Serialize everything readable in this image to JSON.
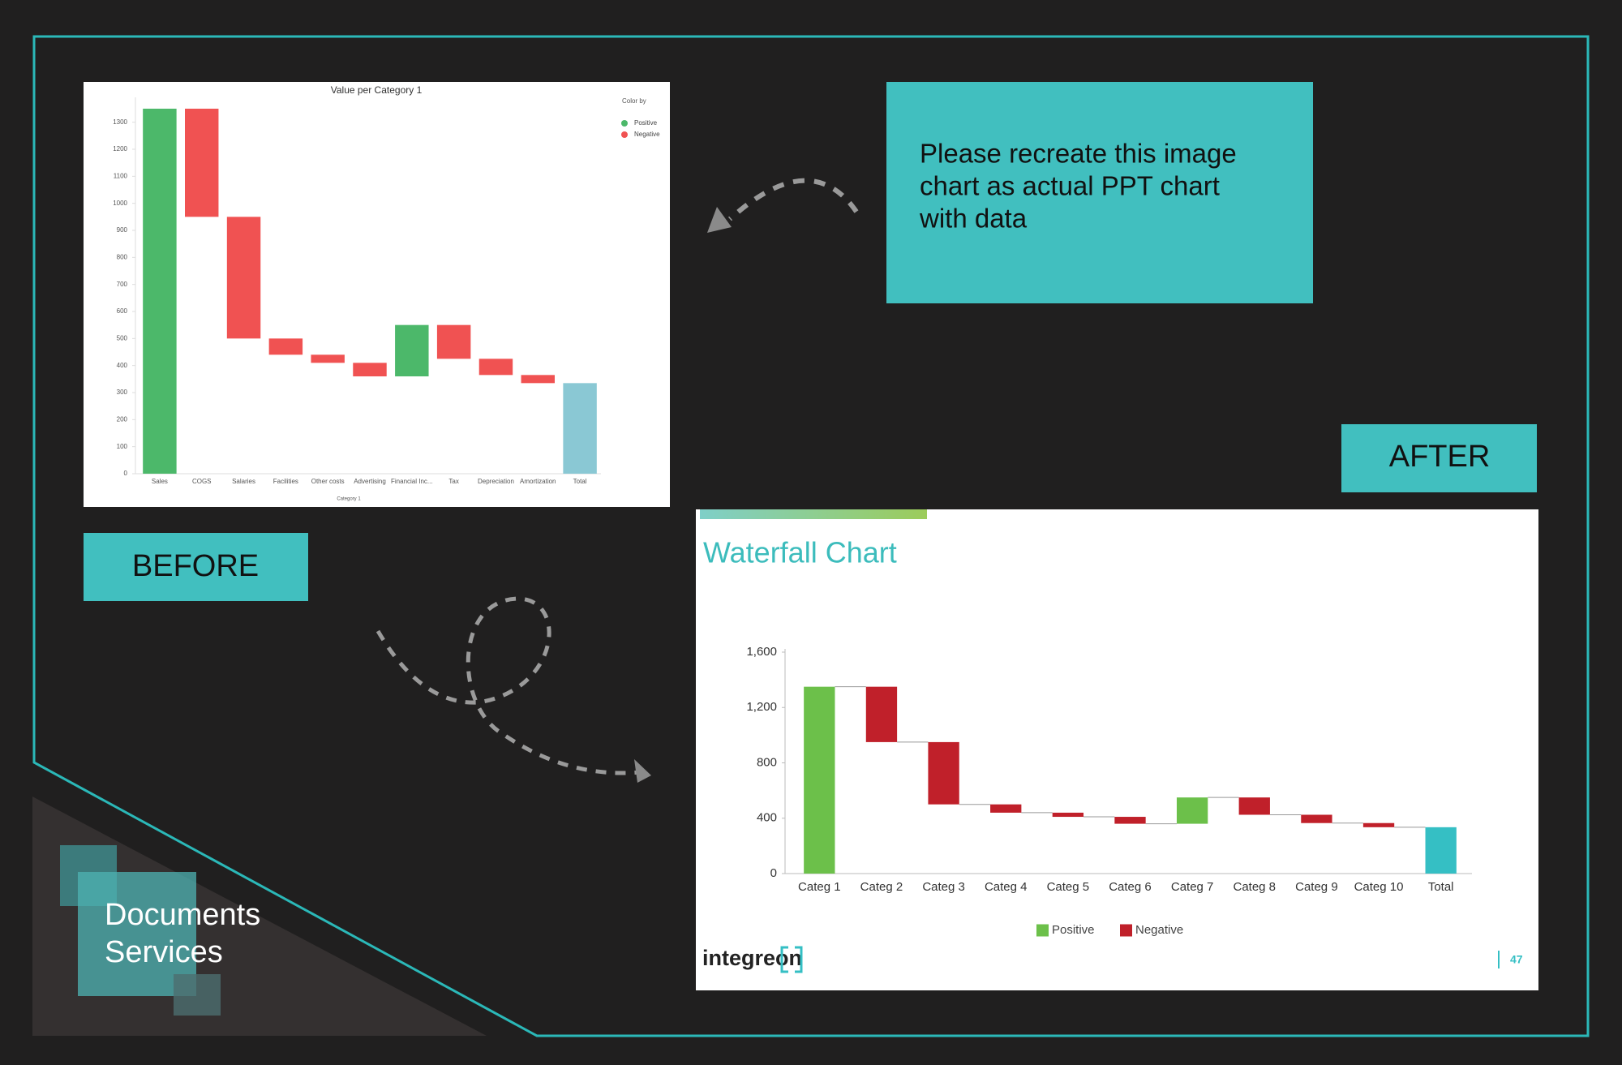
{
  "chart_data": [
    {
      "type": "waterfall",
      "title": "Value per Category 1",
      "legend_title": "Color by",
      "x_label": "Category 1",
      "categories": [
        "Sales",
        "COGS",
        "Salaries",
        "Facilities",
        "Other costs",
        "Advertising",
        "Financial Inc...",
        "Tax",
        "Depreciation",
        "Amortization",
        "Total"
      ],
      "values": [
        1350,
        -400,
        -450,
        -60,
        -30,
        -50,
        190,
        -125,
        -60,
        -30,
        335
      ],
      "legend": [
        "Positive",
        "Negative"
      ],
      "positive_color": "#4cb86a",
      "negative_color": "#f05252",
      "total_color": "#8ac8d4",
      "ylim": [
        0,
        1380
      ],
      "yticks": [
        0,
        100,
        200,
        300,
        400,
        500,
        600,
        700,
        800,
        900,
        1000,
        1100,
        1200,
        1300
      ],
      "grid": false
    },
    {
      "type": "waterfall",
      "title": "Waterfall Chart",
      "categories": [
        "Categ 1",
        "Categ 2",
        "Categ 3",
        "Categ 4",
        "Categ 5",
        "Categ 6",
        "Categ 7",
        "Categ 8",
        "Categ 9",
        "Categ 10",
        "Total"
      ],
      "values": [
        1350,
        -400,
        -450,
        -60,
        -30,
        -50,
        190,
        -125,
        -60,
        -30,
        335
      ],
      "legend": [
        "Positive",
        "Negative"
      ],
      "positive_color": "#6cc04a",
      "negative_color": "#c0202a",
      "total_color": "#35bfc4",
      "ylim": [
        0,
        1600
      ],
      "yticks": [
        0,
        400,
        800,
        {
          "value": 1200,
          "label": "1,200"
        },
        {
          "value": 1600,
          "label": "1,600"
        }
      ],
      "grid": false
    }
  ],
  "slide": {
    "before_label": "BEFORE",
    "after_label": "AFTER",
    "request": [
      "Please recreate this image",
      "chart as actual PPT chart",
      "with data"
    ],
    "brand": [
      "Documents",
      "Services"
    ],
    "logo": "integreon",
    "page": 47
  }
}
